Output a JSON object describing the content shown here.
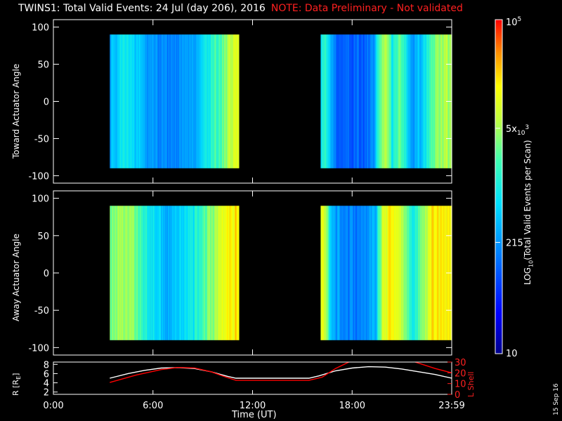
{
  "header": {
    "title": "TWINS1: Total Valid Events: 24 Jul (day 206), 2016",
    "note": "NOTE: Data Preliminary - Not validated"
  },
  "colorbar": {
    "label_parts": [
      "LOG",
      "10",
      "(Total Valid Events per Scan)"
    ],
    "ticks": [
      {
        "value": 100000,
        "parts": [
          "10",
          "5"
        ]
      },
      {
        "value": 5000,
        "parts": [
          "5x",
          "10",
          "3"
        ]
      },
      {
        "value": 215,
        "parts": [
          "215"
        ]
      },
      {
        "value": 10,
        "parts": [
          "10"
        ]
      }
    ],
    "range": [
      10,
      100000
    ],
    "scale": "log"
  },
  "stamp": "15 Sep 16",
  "chart_data": [
    {
      "type": "heatmap",
      "ylabel": "Toward Actuator Angle",
      "xlim": [
        0,
        24
      ],
      "ylim": [
        -110,
        110
      ],
      "yticks": [
        100,
        50,
        0,
        -50,
        -100
      ],
      "ytick_labels": [
        "100",
        "50",
        "0",
        "-50",
        "-100"
      ],
      "angle_range": [
        -90,
        90
      ],
      "blocks": [
        {
          "start": 3.4,
          "end": 11.2,
          "profile": [
            [
              0,
              320
            ],
            [
              0.05,
              500
            ],
            [
              0.12,
              900
            ],
            [
              0.2,
              600
            ],
            [
              0.3,
              220
            ],
            [
              0.45,
              160
            ],
            [
              0.55,
              220
            ],
            [
              0.65,
              280
            ],
            [
              0.75,
              900
            ],
            [
              0.85,
              2200
            ],
            [
              0.92,
              5000
            ],
            [
              1,
              12000
            ]
          ]
        },
        {
          "start": 16.1,
          "end": 24,
          "profile": [
            [
              0,
              800
            ],
            [
              0.03,
              1600
            ],
            [
              0.07,
              400
            ],
            [
              0.12,
              120
            ],
            [
              0.25,
              100
            ],
            [
              0.4,
              150
            ],
            [
              0.45,
              2500
            ],
            [
              0.5,
              6000
            ],
            [
              0.55,
              900
            ],
            [
              0.6,
              3000
            ],
            [
              0.7,
              220
            ],
            [
              0.8,
              800
            ],
            [
              0.88,
              4000
            ],
            [
              0.95,
              6000
            ],
            [
              1,
              3500
            ]
          ]
        }
      ]
    },
    {
      "type": "heatmap",
      "ylabel": "Away Actuator Angle",
      "xlim": [
        0,
        24
      ],
      "ylim": [
        -110,
        110
      ],
      "yticks": [
        100,
        50,
        0,
        -50,
        -100
      ],
      "ytick_labels": [
        "100",
        "50",
        "0",
        "-50",
        "-100"
      ],
      "angle_range": [
        -90,
        90
      ],
      "blocks": [
        {
          "start": 3.4,
          "end": 11.2,
          "profile": [
            [
              0,
              3000
            ],
            [
              0.1,
              5000
            ],
            [
              0.2,
              3500
            ],
            [
              0.3,
              800
            ],
            [
              0.45,
              320
            ],
            [
              0.55,
              500
            ],
            [
              0.65,
              900
            ],
            [
              0.75,
              2500
            ],
            [
              0.85,
              8000
            ],
            [
              0.92,
              15000
            ],
            [
              1,
              20000
            ]
          ]
        },
        {
          "start": 16.1,
          "end": 24,
          "profile": [
            [
              0,
              12000
            ],
            [
              0.04,
              6000
            ],
            [
              0.08,
              300
            ],
            [
              0.2,
              150
            ],
            [
              0.35,
              180
            ],
            [
              0.42,
              400
            ],
            [
              0.47,
              8000
            ],
            [
              0.52,
              15000
            ],
            [
              0.6,
              12000
            ],
            [
              0.7,
              900
            ],
            [
              0.78,
              4000
            ],
            [
              0.85,
              18000
            ],
            [
              0.93,
              20000
            ],
            [
              1,
              14000
            ]
          ]
        }
      ]
    },
    {
      "type": "line",
      "xlabel": "Time (UT)",
      "xlim": [
        0,
        24
      ],
      "xticks": [
        0,
        6,
        12,
        18,
        24
      ],
      "xtick_labels": [
        "0:00",
        "6:00",
        "12:00",
        "18:00",
        "23:59"
      ],
      "ylabel_left_parts": [
        "R [R",
        "E",
        "]"
      ],
      "ylabel_right": "L Shell",
      "ylim_left": [
        1.5,
        8.5
      ],
      "yticks_left": [
        2,
        4,
        6,
        8
      ],
      "ylim_right": [
        0,
        30
      ],
      "yticks_right": [
        0,
        10,
        20,
        30
      ],
      "series": [
        {
          "axis": "left",
          "color": "#ffffff",
          "x": [
            3.4,
            4.5,
            5.5,
            6.5,
            7.5,
            8.5,
            9.5,
            10.5,
            11.0,
            15.4,
            16.0,
            17.0,
            18.0,
            19.0,
            20.0,
            21.0,
            22.0,
            23.0,
            24.0
          ],
          "y": [
            5.0,
            6.0,
            6.7,
            7.2,
            7.3,
            7.1,
            6.4,
            5.4,
            5.0,
            5.0,
            5.5,
            6.6,
            7.2,
            7.5,
            7.4,
            7.0,
            6.4,
            5.8,
            5.0
          ]
        },
        {
          "axis": "right",
          "color": "#ff0000",
          "x": [
            3.4,
            5.0,
            6.5,
            7.5,
            8.5,
            9.5,
            10.4,
            11.0,
            15.4,
            16.2,
            17.0,
            17.8,
            18.0
          ],
          "y": [
            11,
            18,
            23,
            25,
            24.5,
            21,
            16,
            13,
            13,
            16,
            24,
            30,
            32
          ]
        },
        {
          "axis": "right",
          "color": "#ff0000",
          "x": [
            21.8,
            23.0,
            24.0
          ],
          "y": [
            30,
            24,
            20
          ]
        }
      ]
    }
  ]
}
